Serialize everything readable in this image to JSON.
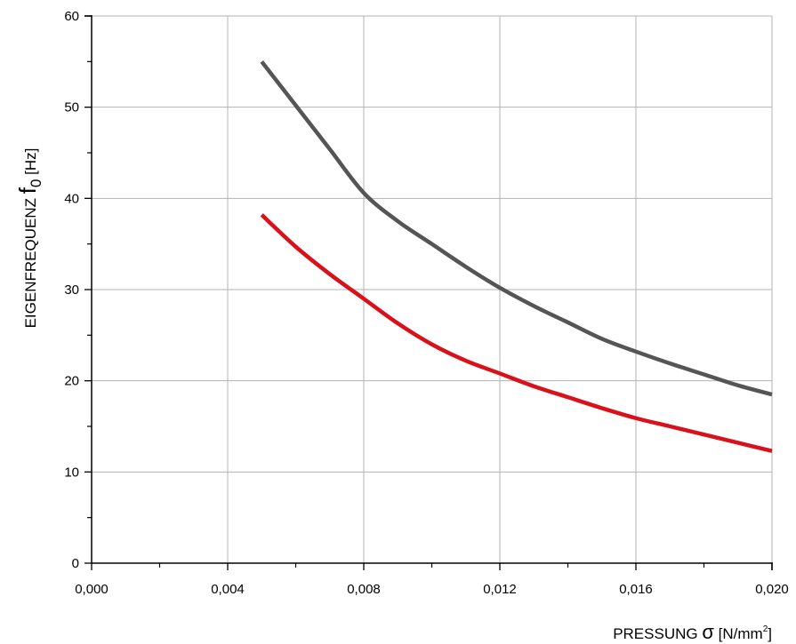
{
  "chart_data": {
    "type": "line",
    "title": "",
    "xlabel": {
      "text": "PRESSUNG",
      "symbol": "σ",
      "unit": "[N/mm",
      "unit_sup": "2",
      "unit_end": "]"
    },
    "ylabel": {
      "text": "EIGENFREQUENZ",
      "symbol": "f",
      "symbol_sub": "0",
      "unit": "[Hz]"
    },
    "xlim": [
      0,
      0.02
    ],
    "ylim": [
      0,
      60
    ],
    "x_ticks": [
      0,
      0.004,
      0.008,
      0.012,
      0.016,
      0.02
    ],
    "x_tick_labels": [
      "0,000",
      "0,004",
      "0,008",
      "0,012",
      "0,016",
      "0,020"
    ],
    "y_ticks": [
      0,
      10,
      20,
      30,
      40,
      50,
      60
    ],
    "y_tick_labels": [
      "0",
      "10",
      "20",
      "30",
      "40",
      "50",
      "60"
    ],
    "grid": true,
    "series": [
      {
        "color": "#555555",
        "x": [
          0.005,
          0.006,
          0.007,
          0.008,
          0.009,
          0.01,
          0.011,
          0.012,
          0.013,
          0.014,
          0.015,
          0.016,
          0.017,
          0.018,
          0.019,
          0.02
        ],
        "y": [
          55.0,
          50.2,
          45.4,
          40.6,
          37.5,
          35.0,
          32.5,
          30.2,
          28.2,
          26.4,
          24.6,
          23.2,
          21.9,
          20.7,
          19.5,
          18.5
        ]
      },
      {
        "color": "#d9111b",
        "x": [
          0.005,
          0.006,
          0.007,
          0.008,
          0.009,
          0.01,
          0.011,
          0.012,
          0.013,
          0.014,
          0.015,
          0.016,
          0.017,
          0.018,
          0.019,
          0.02
        ],
        "y": [
          38.2,
          34.7,
          31.7,
          29.0,
          26.3,
          24.0,
          22.2,
          20.8,
          19.4,
          18.2,
          17.0,
          15.9,
          15.0,
          14.1,
          13.2,
          12.3
        ]
      }
    ]
  }
}
